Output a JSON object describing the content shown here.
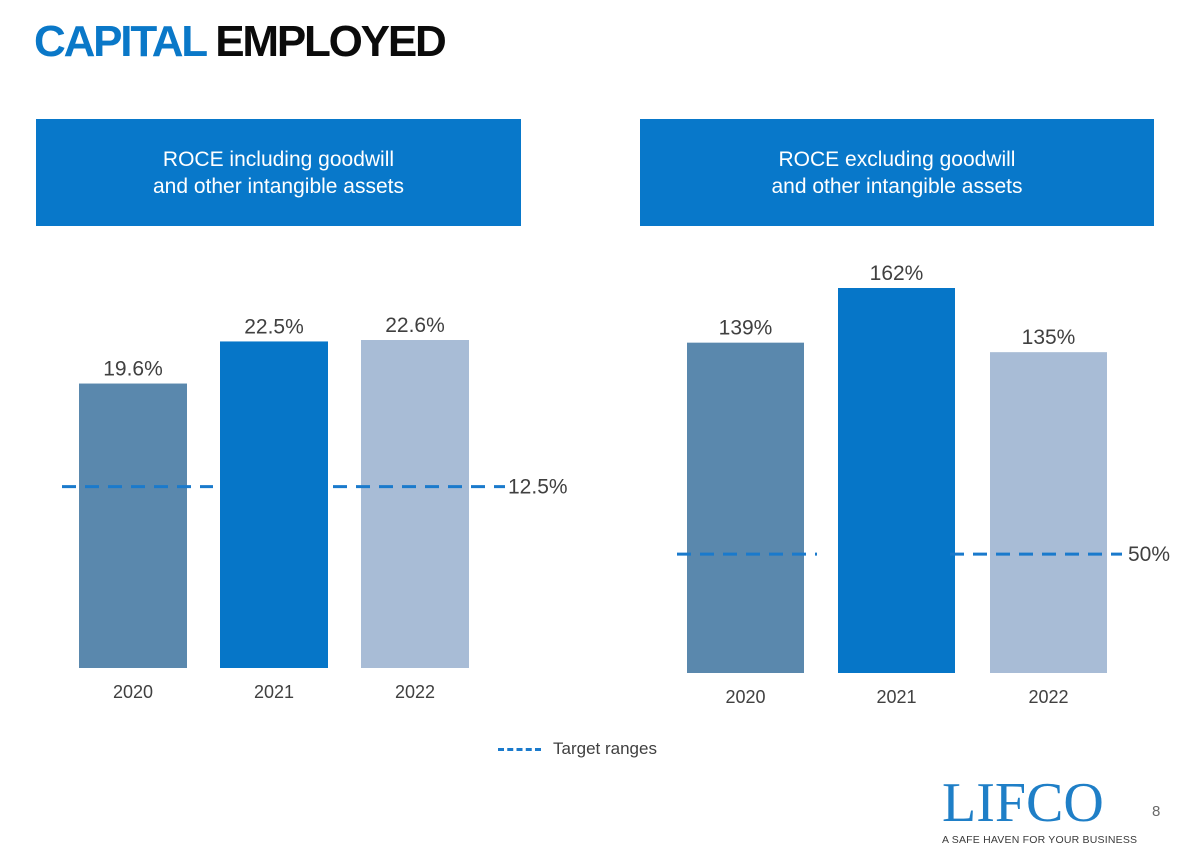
{
  "title": {
    "part1": "CAPITAL",
    "part2": "EMPLOYED"
  },
  "legend": {
    "label": "Target ranges"
  },
  "logo": {
    "wordmark": "LIFCO",
    "tagline": "A SAFE HAVEN FOR YOUR BUSINESS"
  },
  "page_number": "8",
  "chart_data": [
    {
      "type": "bar",
      "title_lines": [
        "ROCE including goodwill",
        "and other intangible assets"
      ],
      "categories": [
        "2020",
        "2021",
        "2022"
      ],
      "values": [
        19.6,
        22.5,
        22.6
      ],
      "value_labels": [
        "19.6%",
        "22.5%",
        "22.6%"
      ],
      "bar_colors": [
        "#5a88ad",
        "#0676c8",
        "#a8bcd6"
      ],
      "target": {
        "value": 12.5,
        "label": "12.5%",
        "color": "#1a7acc",
        "style": "dashed"
      },
      "ylim": [
        0,
        22.6
      ],
      "grid": false
    },
    {
      "type": "bar",
      "title_lines": [
        "ROCE excluding goodwill",
        "and other intangible assets"
      ],
      "categories": [
        "2020",
        "2021",
        "2022"
      ],
      "values": [
        139,
        162,
        135
      ],
      "value_labels": [
        "139%",
        "162%",
        "135%"
      ],
      "bar_colors": [
        "#5a88ad",
        "#0676c8",
        "#a8bcd6"
      ],
      "target": {
        "value": 50,
        "label": "50%",
        "color": "#1a7acc",
        "style": "dashed"
      },
      "ylim": [
        0,
        162
      ],
      "grid": false
    }
  ]
}
